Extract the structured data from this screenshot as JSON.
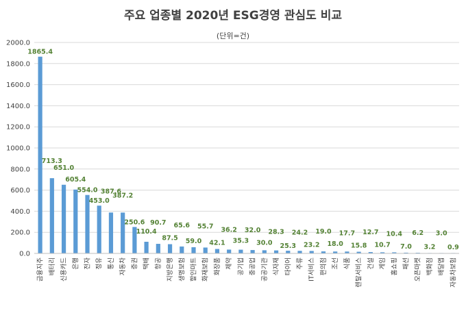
{
  "chart_data": {
    "type": "bar",
    "title": "주요 업종별 2020년 ESG경영 관심도 비교",
    "subtitle": "(단위=건)",
    "xlabel": "",
    "ylabel": "",
    "ylim": [
      0,
      2000
    ],
    "yticks": [
      "0.0",
      "200.0",
      "400.0",
      "600.0",
      "800.0",
      "1000.0",
      "1200.0",
      "1400.0",
      "1600.0",
      "1800.0",
      "2000.0"
    ],
    "grid": true,
    "legend": "none",
    "bar_color": "#5b9bd5",
    "label_color": "#548235",
    "categories": [
      "금융지주",
      "배터리",
      "신용카드",
      "은행",
      "전자",
      "정유",
      "통신",
      "자동차",
      "증권",
      "택배",
      "항공",
      "지방은행",
      "생명보험",
      "할인마트",
      "화재보험",
      "화장품",
      "제약",
      "공기업",
      "중공업",
      "공공기관",
      "식자재",
      "타이어",
      "주류",
      "IT서비스",
      "편의점",
      "조선",
      "식품",
      "렌탈서비스",
      "건설",
      "게임",
      "홈쇼핑",
      "패션",
      "오픈마켓",
      "백화점",
      "배달앱",
      "자동차보험"
    ],
    "values": [
      1865.4,
      713.3,
      651.0,
      605.4,
      554.0,
      453.0,
      387.6,
      387.2,
      250.6,
      110.4,
      90.7,
      87.5,
      65.6,
      59.0,
      55.7,
      42.1,
      36.2,
      35.3,
      32.0,
      30.0,
      28.3,
      25.3,
      24.2,
      23.2,
      19.0,
      18.0,
      17.7,
      15.8,
      12.7,
      10.7,
      10.4,
      7.0,
      6.2,
      3.2,
      3.0,
      0.9
    ],
    "value_labels": [
      "1865.4",
      "713.3",
      "651.0",
      "605.4",
      "554.0",
      "453.0",
      "387.6",
      "387.2",
      "250.6",
      "110.4",
      "90.7",
      "87.5",
      "65.6",
      "59.0",
      "55.7",
      "42.1",
      "36.2",
      "35.3",
      "32.0",
      "30.0",
      "28.3",
      "25.3",
      "24.2",
      "23.2",
      "19.0",
      "18.0",
      "17.7",
      "15.8",
      "12.7",
      "10.7",
      "10.4",
      "7.0",
      "6.2",
      "3.2",
      "3.0",
      "0.9"
    ]
  }
}
